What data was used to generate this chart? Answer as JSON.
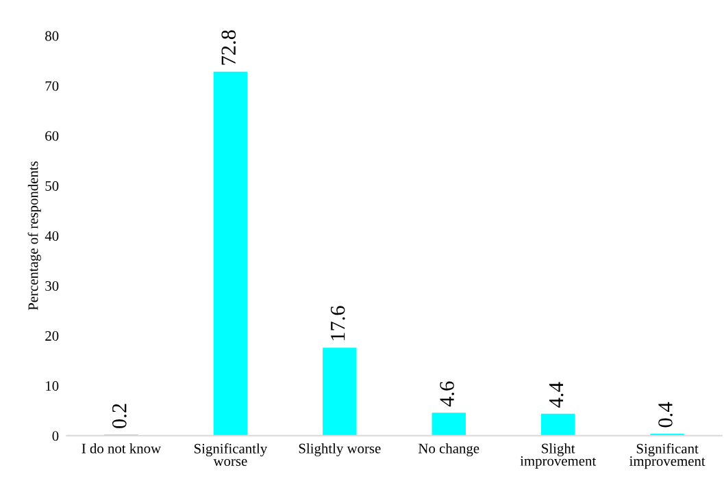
{
  "chart_data": {
    "type": "bar",
    "ylabel": "Percentage of respondents",
    "categories": [
      "I do not know",
      "Significantly\nworse",
      "Slightly worse",
      "No change",
      "Slight\nimprovement",
      "Significant\nimprovement"
    ],
    "values": [
      0.2,
      72.8,
      17.6,
      4.6,
      4.4,
      0.4
    ],
    "color": "#00ffff",
    "ylim": [
      0,
      80
    ],
    "yticks": [
      0,
      10,
      20,
      30,
      40,
      50,
      60,
      70,
      80
    ],
    "grid": false,
    "data_labels": true
  }
}
